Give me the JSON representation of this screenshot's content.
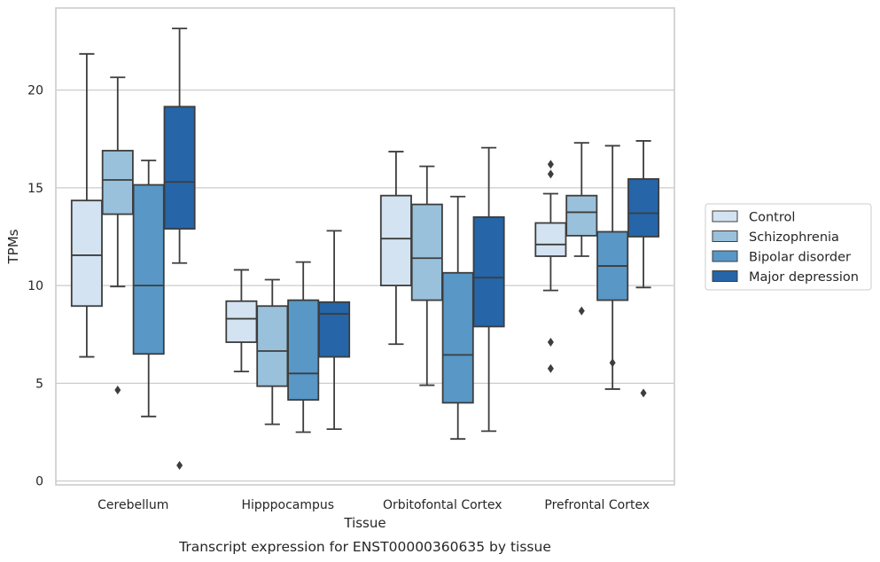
{
  "caption": "Transcript expression for ENST00000360635 by tissue",
  "chart_data": {
    "type": "box",
    "xlabel": "Tissue",
    "ylabel": "TPMs",
    "ylim": [
      -0.2,
      24.2
    ],
    "yticks": [
      0,
      5,
      10,
      15,
      20
    ],
    "grid": "horizontal",
    "legend_position": "outside-right",
    "categories": [
      "Cerebellum",
      "Hipppocampus",
      "Orbitofontal Cortex",
      "Prefrontal Cortex"
    ],
    "series": [
      {
        "name": "Control",
        "color": "#d4e3f2",
        "boxes": [
          {
            "whisker_low": 6.35,
            "q1": 8.95,
            "median": 11.55,
            "q3": 14.35,
            "whisker_high": 21.85,
            "outliers": []
          },
          {
            "whisker_low": 5.6,
            "q1": 7.1,
            "median": 8.3,
            "q3": 9.2,
            "whisker_high": 10.8,
            "outliers": []
          },
          {
            "whisker_low": 7.0,
            "q1": 10.0,
            "median": 12.4,
            "q3": 14.6,
            "whisker_high": 16.85,
            "outliers": []
          },
          {
            "whisker_low": 9.75,
            "q1": 11.5,
            "median": 12.1,
            "q3": 13.2,
            "whisker_high": 14.7,
            "outliers": [
              16.2,
              15.7,
              7.1,
              5.75
            ]
          }
        ]
      },
      {
        "name": "Schizophrenia",
        "color": "#9ac1db",
        "boxes": [
          {
            "whisker_low": 9.95,
            "q1": 13.65,
            "median": 15.4,
            "q3": 16.9,
            "whisker_high": 20.65,
            "outliers": [
              4.65
            ]
          },
          {
            "whisker_low": 2.9,
            "q1": 4.85,
            "median": 6.65,
            "q3": 8.95,
            "whisker_high": 10.3,
            "outliers": []
          },
          {
            "whisker_low": 4.9,
            "q1": 9.25,
            "median": 11.4,
            "q3": 14.15,
            "whisker_high": 16.1,
            "outliers": []
          },
          {
            "whisker_low": 11.5,
            "q1": 12.55,
            "median": 13.75,
            "q3": 14.6,
            "whisker_high": 17.3,
            "outliers": [
              8.7
            ]
          }
        ]
      },
      {
        "name": "Bipolar disorder",
        "color": "#5897c6",
        "boxes": [
          {
            "whisker_low": 3.3,
            "q1": 6.5,
            "median": 10.0,
            "q3": 15.15,
            "whisker_high": 16.4,
            "outliers": []
          },
          {
            "whisker_low": 2.5,
            "q1": 4.15,
            "median": 5.5,
            "q3": 9.25,
            "whisker_high": 11.2,
            "outliers": []
          },
          {
            "whisker_low": 2.15,
            "q1": 4.0,
            "median": 6.45,
            "q3": 10.65,
            "whisker_high": 14.55,
            "outliers": []
          },
          {
            "whisker_low": 4.7,
            "q1": 9.25,
            "median": 11.0,
            "q3": 12.75,
            "whisker_high": 17.15,
            "outliers": [
              6.05
            ]
          }
        ]
      },
      {
        "name": "Major depression",
        "color": "#2565a8",
        "boxes": [
          {
            "whisker_low": 11.15,
            "q1": 12.9,
            "median": 15.3,
            "q3": 19.15,
            "whisker_high": 23.15,
            "outliers": [
              0.8
            ]
          },
          {
            "whisker_low": 2.65,
            "q1": 6.35,
            "median": 8.55,
            "q3": 9.15,
            "whisker_high": 12.8,
            "outliers": []
          },
          {
            "whisker_low": 2.55,
            "q1": 7.9,
            "median": 10.4,
            "q3": 13.5,
            "whisker_high": 17.05,
            "outliers": []
          },
          {
            "whisker_low": 9.9,
            "q1": 12.5,
            "median": 13.7,
            "q3": 15.45,
            "whisker_high": 17.4,
            "outliers": [
              4.5
            ]
          }
        ]
      }
    ]
  }
}
